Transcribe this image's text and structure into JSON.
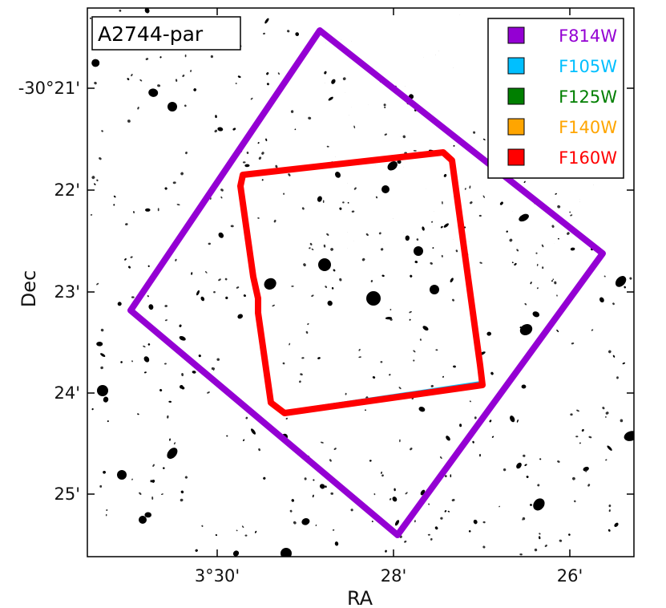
{
  "figure": {
    "title": "A2744-par",
    "xlabel": "RA",
    "ylabel": "Dec",
    "x_ticks": [
      "3°30'",
      "28'",
      "26'"
    ],
    "y_ticks": [
      "-30°21'",
      "22'",
      "23'",
      "24'",
      "25'"
    ]
  },
  "legend": {
    "placement": "top-right",
    "entries": [
      {
        "label": "F814W",
        "color": "#9400d3"
      },
      {
        "label": "F105W",
        "color": "#00bfff"
      },
      {
        "label": "F125W",
        "color": "#007f00"
      },
      {
        "label": "F140W",
        "color": "#ffa500"
      },
      {
        "label": "F160W",
        "color": "#ff0000"
      }
    ]
  },
  "footprints": {
    "wide_color": "#9400d3",
    "inner_color": "#ff0000",
    "inner_under_color": "#00bfff"
  },
  "image": {
    "description": "grayscale inverted deep field, black sources on white"
  }
}
